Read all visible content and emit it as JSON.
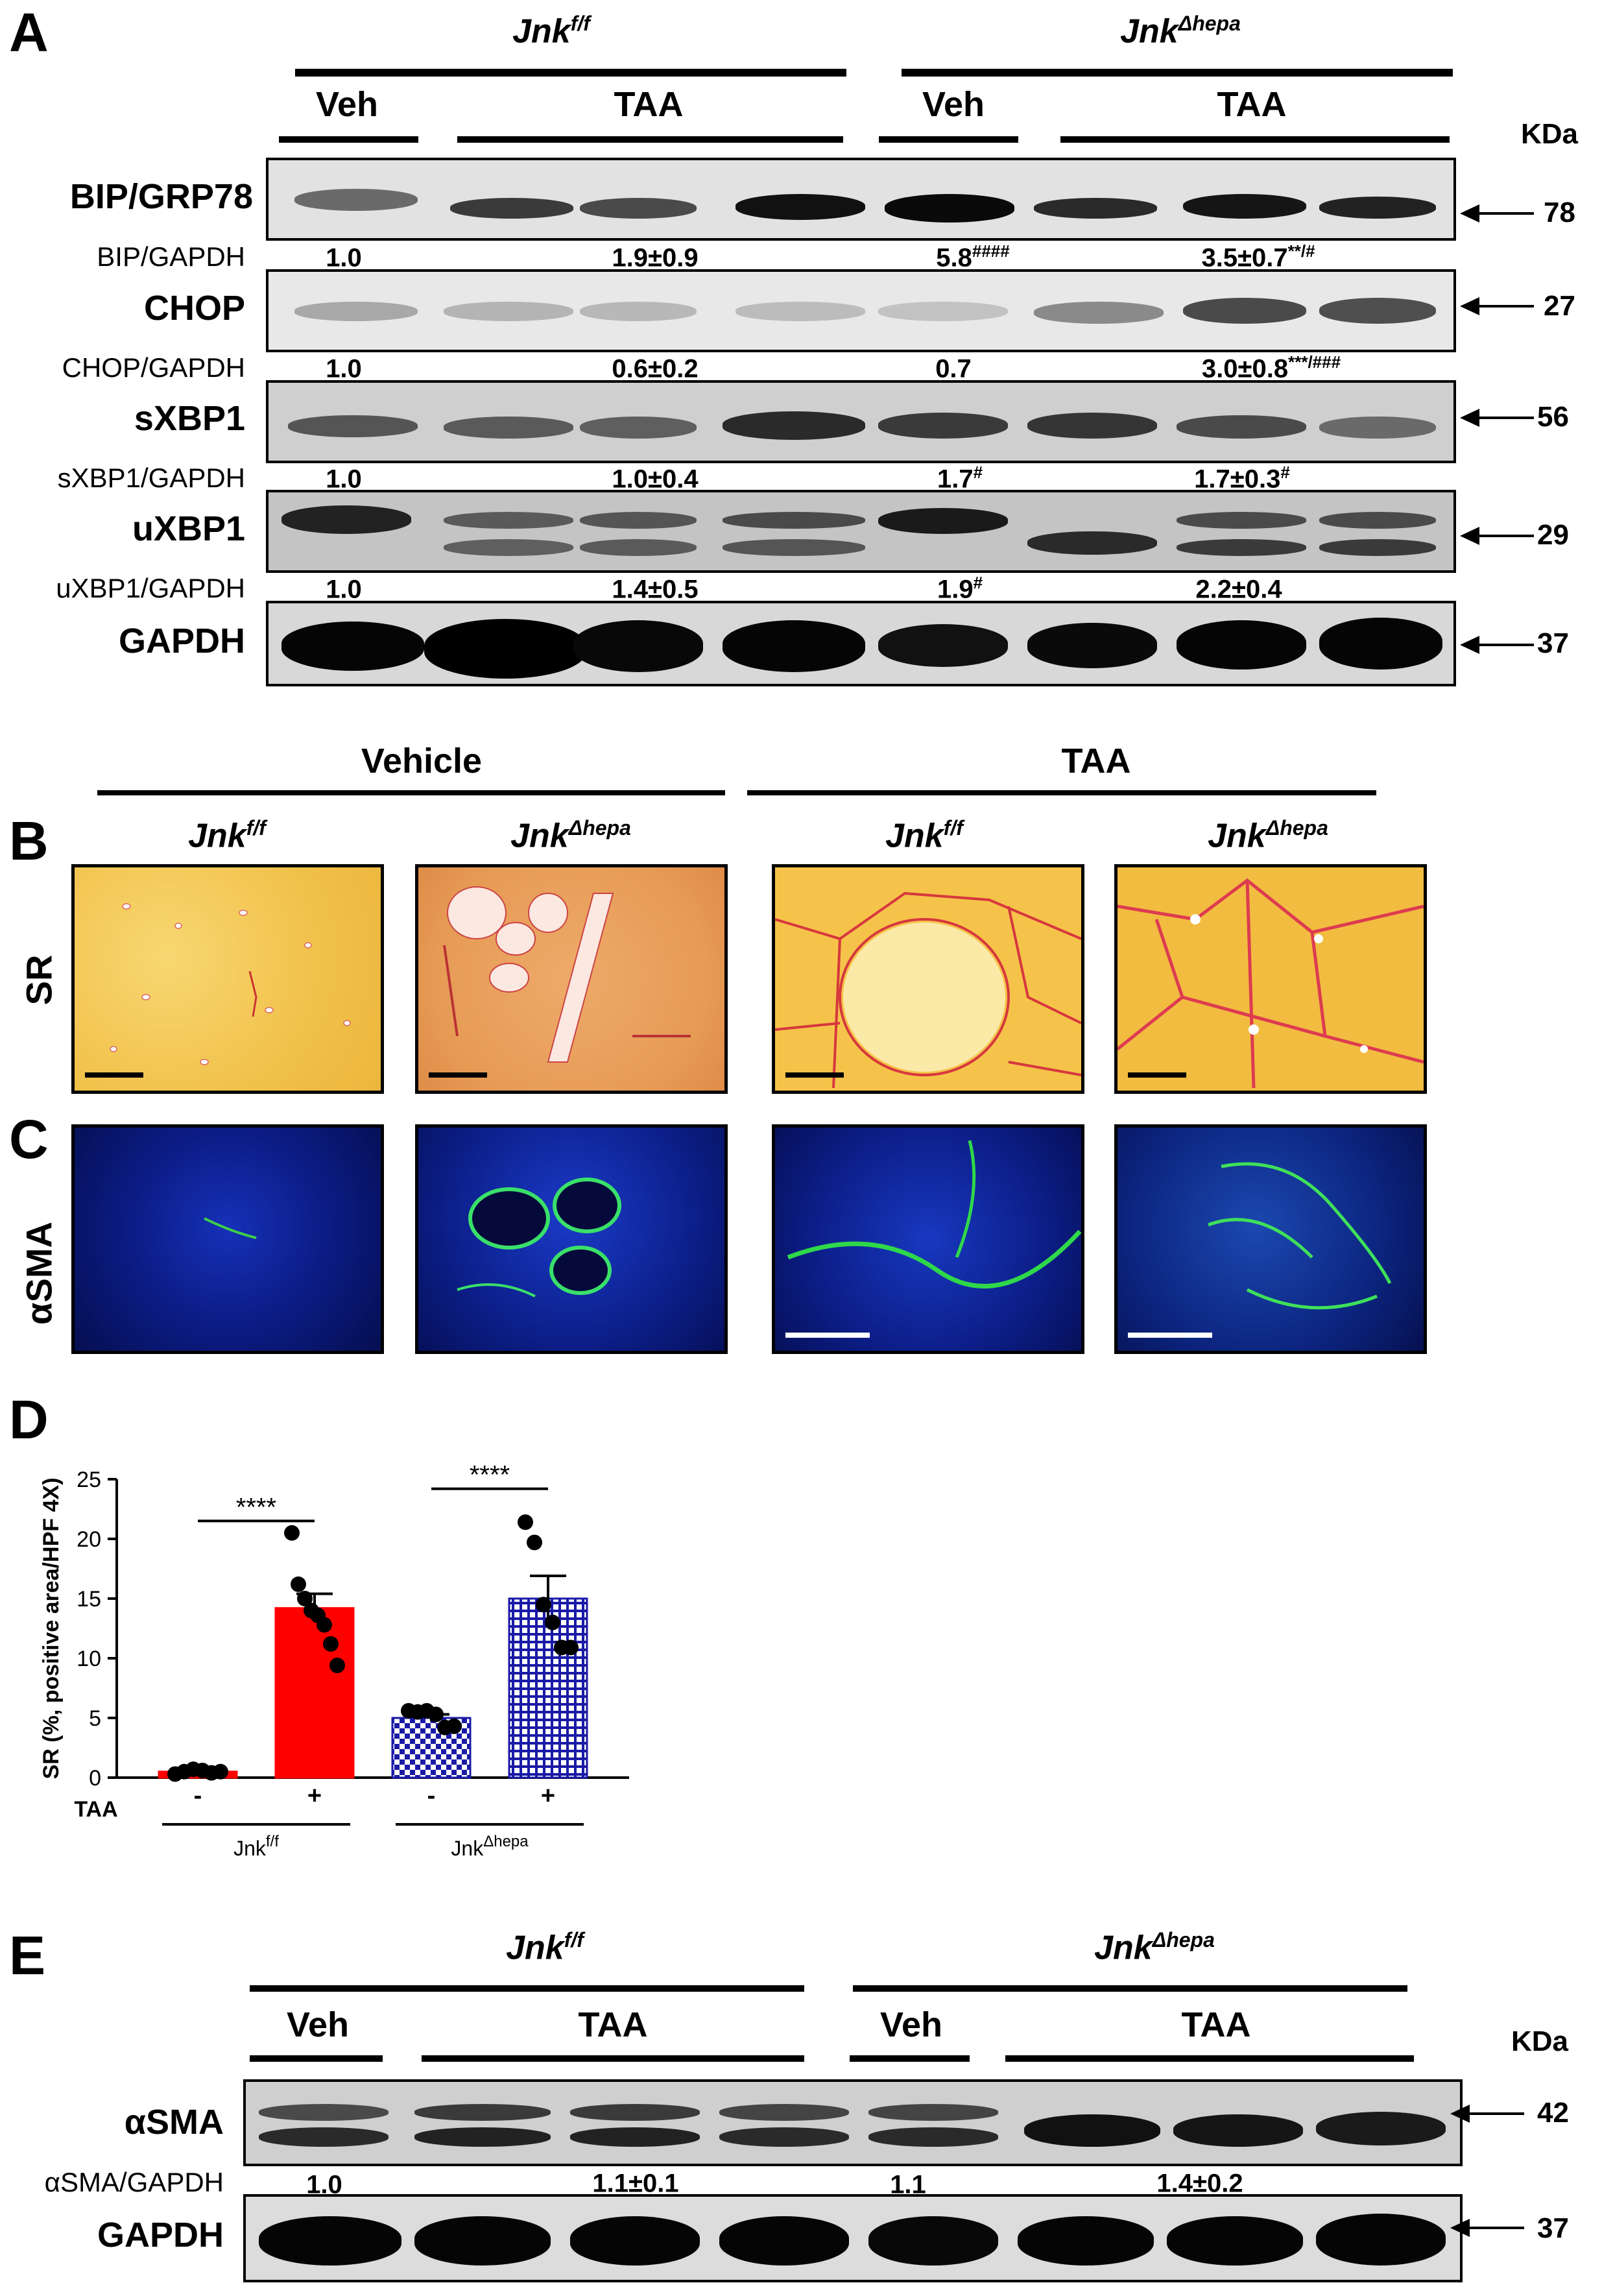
{
  "panelA": {
    "letter": "A",
    "groups": [
      {
        "base": "Jnk",
        "sup": "f/f"
      },
      {
        "base": "Jnk",
        "sup": "Δhepa"
      }
    ],
    "conditions": [
      "Veh",
      "TAA",
      "Veh",
      "TAA"
    ],
    "kda_header": "KDa",
    "rows": [
      {
        "protein": "BIP/GRP78",
        "kda": "78",
        "ratio_label": "BIP/GAPDH",
        "ratios": [
          {
            "v": "1.0",
            "s": ""
          },
          {
            "v": "1.9±0.9",
            "s": ""
          },
          {
            "v": "5.8",
            "s": "####"
          },
          {
            "v": "3.5±0.7",
            "s": "**/#"
          }
        ]
      },
      {
        "protein": "CHOP",
        "kda": "27",
        "ratio_label": "CHOP/GAPDH",
        "ratios": [
          {
            "v": "1.0",
            "s": ""
          },
          {
            "v": "0.6±0.2",
            "s": ""
          },
          {
            "v": "0.7",
            "s": ""
          },
          {
            "v": "3.0±0.8",
            "s": "***/###"
          }
        ]
      },
      {
        "protein": "sXBP1",
        "kda": "56",
        "ratio_label": "sXBP1/GAPDH",
        "ratios": [
          {
            "v": "1.0",
            "s": ""
          },
          {
            "v": "1.0±0.4",
            "s": ""
          },
          {
            "v": "1.7",
            "s": "#"
          },
          {
            "v": "1.7±0.3",
            "s": "#"
          }
        ]
      },
      {
        "protein": "uXBP1",
        "kda": "29",
        "ratio_label": "uXBP1/GAPDH",
        "ratios": [
          {
            "v": "1.0",
            "s": ""
          },
          {
            "v": "1.4±0.5",
            "s": ""
          },
          {
            "v": "1.9",
            "s": "#"
          },
          {
            "v": "2.2±0.4",
            "s": ""
          }
        ]
      },
      {
        "protein": "GAPDH",
        "kda": "37",
        "ratio_label": "",
        "ratios": []
      }
    ]
  },
  "panelBC": {
    "letters": [
      "B",
      "C"
    ],
    "treatments": [
      "Vehicle",
      "TAA"
    ],
    "columns": [
      {
        "base": "Jnk",
        "sup": "f/f"
      },
      {
        "base": "Jnk",
        "sup": "Δhepa"
      },
      {
        "base": "Jnk",
        "sup": "f/f"
      },
      {
        "base": "Jnk",
        "sup": "Δhepa"
      }
    ],
    "row_labels": [
      "SR",
      "αSMA"
    ]
  },
  "panelD": {
    "letter": "D",
    "chart_data": {
      "type": "bar",
      "ylabel": "SR (%, positive area/HPF 4X)",
      "ylim": [
        0,
        25
      ],
      "yticks": [
        "0",
        "5",
        "10",
        "15",
        "20",
        "25"
      ],
      "taa_label": "TAA",
      "taa_marks": [
        "-",
        "+",
        "-",
        "+"
      ],
      "group_labels": [
        {
          "base": "Jnk",
          "sup": "f/f"
        },
        {
          "base": "Jnk",
          "sup": "Δhepa"
        }
      ],
      "significance": [
        "****",
        "****"
      ],
      "bars": [
        {
          "value": 0.5,
          "sem": 0.1,
          "color": "#ff0000",
          "pattern": "solid",
          "points": [
            0.3,
            0.5,
            0.7,
            0.6,
            0.4,
            0.5
          ]
        },
        {
          "value": 14.2,
          "sem": 1.2,
          "color": "#ff0000",
          "pattern": "solid",
          "points": [
            20.5,
            16.2,
            15.0,
            14.0,
            13.6,
            12.8,
            11.2,
            9.4
          ]
        },
        {
          "value": 5.0,
          "sem": 0.3,
          "color": "#1a1aa6",
          "pattern": "checker",
          "points": [
            5.6,
            5.5,
            5.6,
            5.3,
            4.2,
            4.3
          ]
        },
        {
          "value": 15.0,
          "sem": 1.9,
          "color": "#1a1aa6",
          "pattern": "grid",
          "points": [
            21.4,
            19.7,
            14.5,
            13.0,
            10.9,
            10.9
          ]
        }
      ]
    }
  },
  "panelE": {
    "letter": "E",
    "groups": [
      {
        "base": "Jnk",
        "sup": "f/f"
      },
      {
        "base": "Jnk",
        "sup": "Δhepa"
      }
    ],
    "conditions": [
      "Veh",
      "TAA",
      "Veh",
      "TAA"
    ],
    "kda_header": "KDa",
    "rows": [
      {
        "protein": "αSMA",
        "kda": "42",
        "ratio_label": "αSMA/GAPDH",
        "ratios": [
          {
            "v": "1.0",
            "s": ""
          },
          {
            "v": "1.1±0.1",
            "s": ""
          },
          {
            "v": "1.1",
            "s": ""
          },
          {
            "v": "1.4±0.2",
            "s": ""
          }
        ]
      },
      {
        "protein": "GAPDH",
        "kda": "37",
        "ratio_label": "",
        "ratios": []
      }
    ]
  },
  "colors": {
    "sr_vehicle": "#f3c24a",
    "sr_red": "#d4384b",
    "if_blue": "#1022a8",
    "if_green": "#2fdc4a"
  }
}
